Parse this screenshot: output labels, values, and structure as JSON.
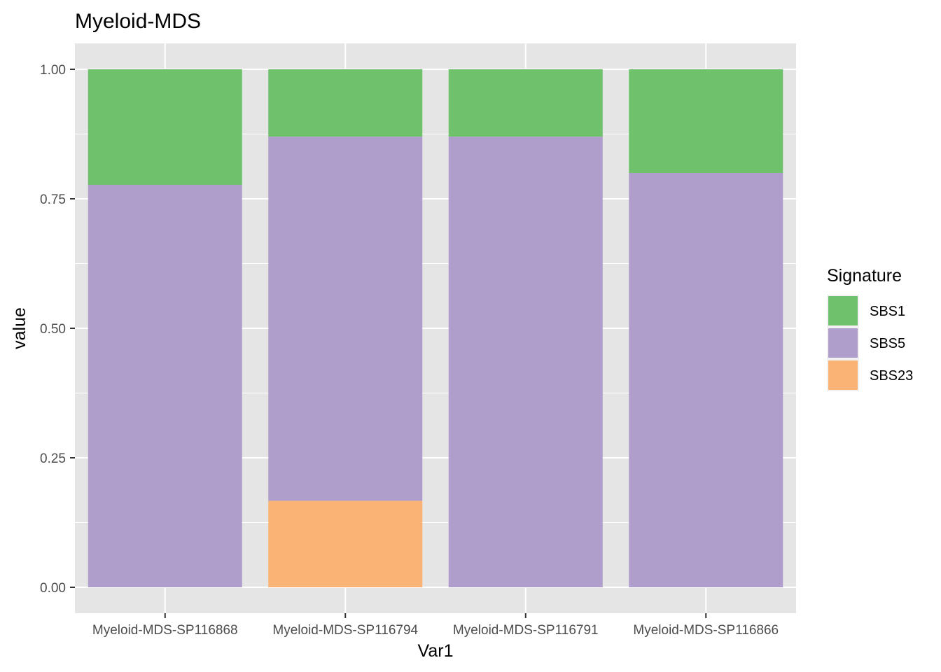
{
  "chart_data": {
    "type": "bar",
    "stacked": true,
    "title": "Myeloid-MDS",
    "xlabel": "Var1",
    "ylabel": "value",
    "ylim": [
      -0.05,
      1.05
    ],
    "yticks": [
      0.0,
      0.25,
      0.5,
      0.75,
      1.0
    ],
    "ytick_labels": [
      "0.00",
      "0.25",
      "0.50",
      "0.75",
      "1.00"
    ],
    "categories": [
      "Myeloid-MDS-SP116868",
      "Myeloid-MDS-SP116794",
      "Myeloid-MDS-SP116791",
      "Myeloid-MDS-SP116866"
    ],
    "series": [
      {
        "name": "SBS1",
        "color": "#6fc16b",
        "values": [
          0.223,
          0.13,
          0.13,
          0.2
        ]
      },
      {
        "name": "SBS5",
        "color": "#af9dcb",
        "values": [
          0.777,
          0.703,
          0.87,
          0.8
        ]
      },
      {
        "name": "SBS23",
        "color": "#fab374",
        "values": [
          0.0,
          0.167,
          0.0,
          0.0
        ]
      }
    ],
    "grid": true,
    "panel_background": "#e5e5e5",
    "legend": {
      "title": "Signature",
      "position": "right"
    }
  }
}
